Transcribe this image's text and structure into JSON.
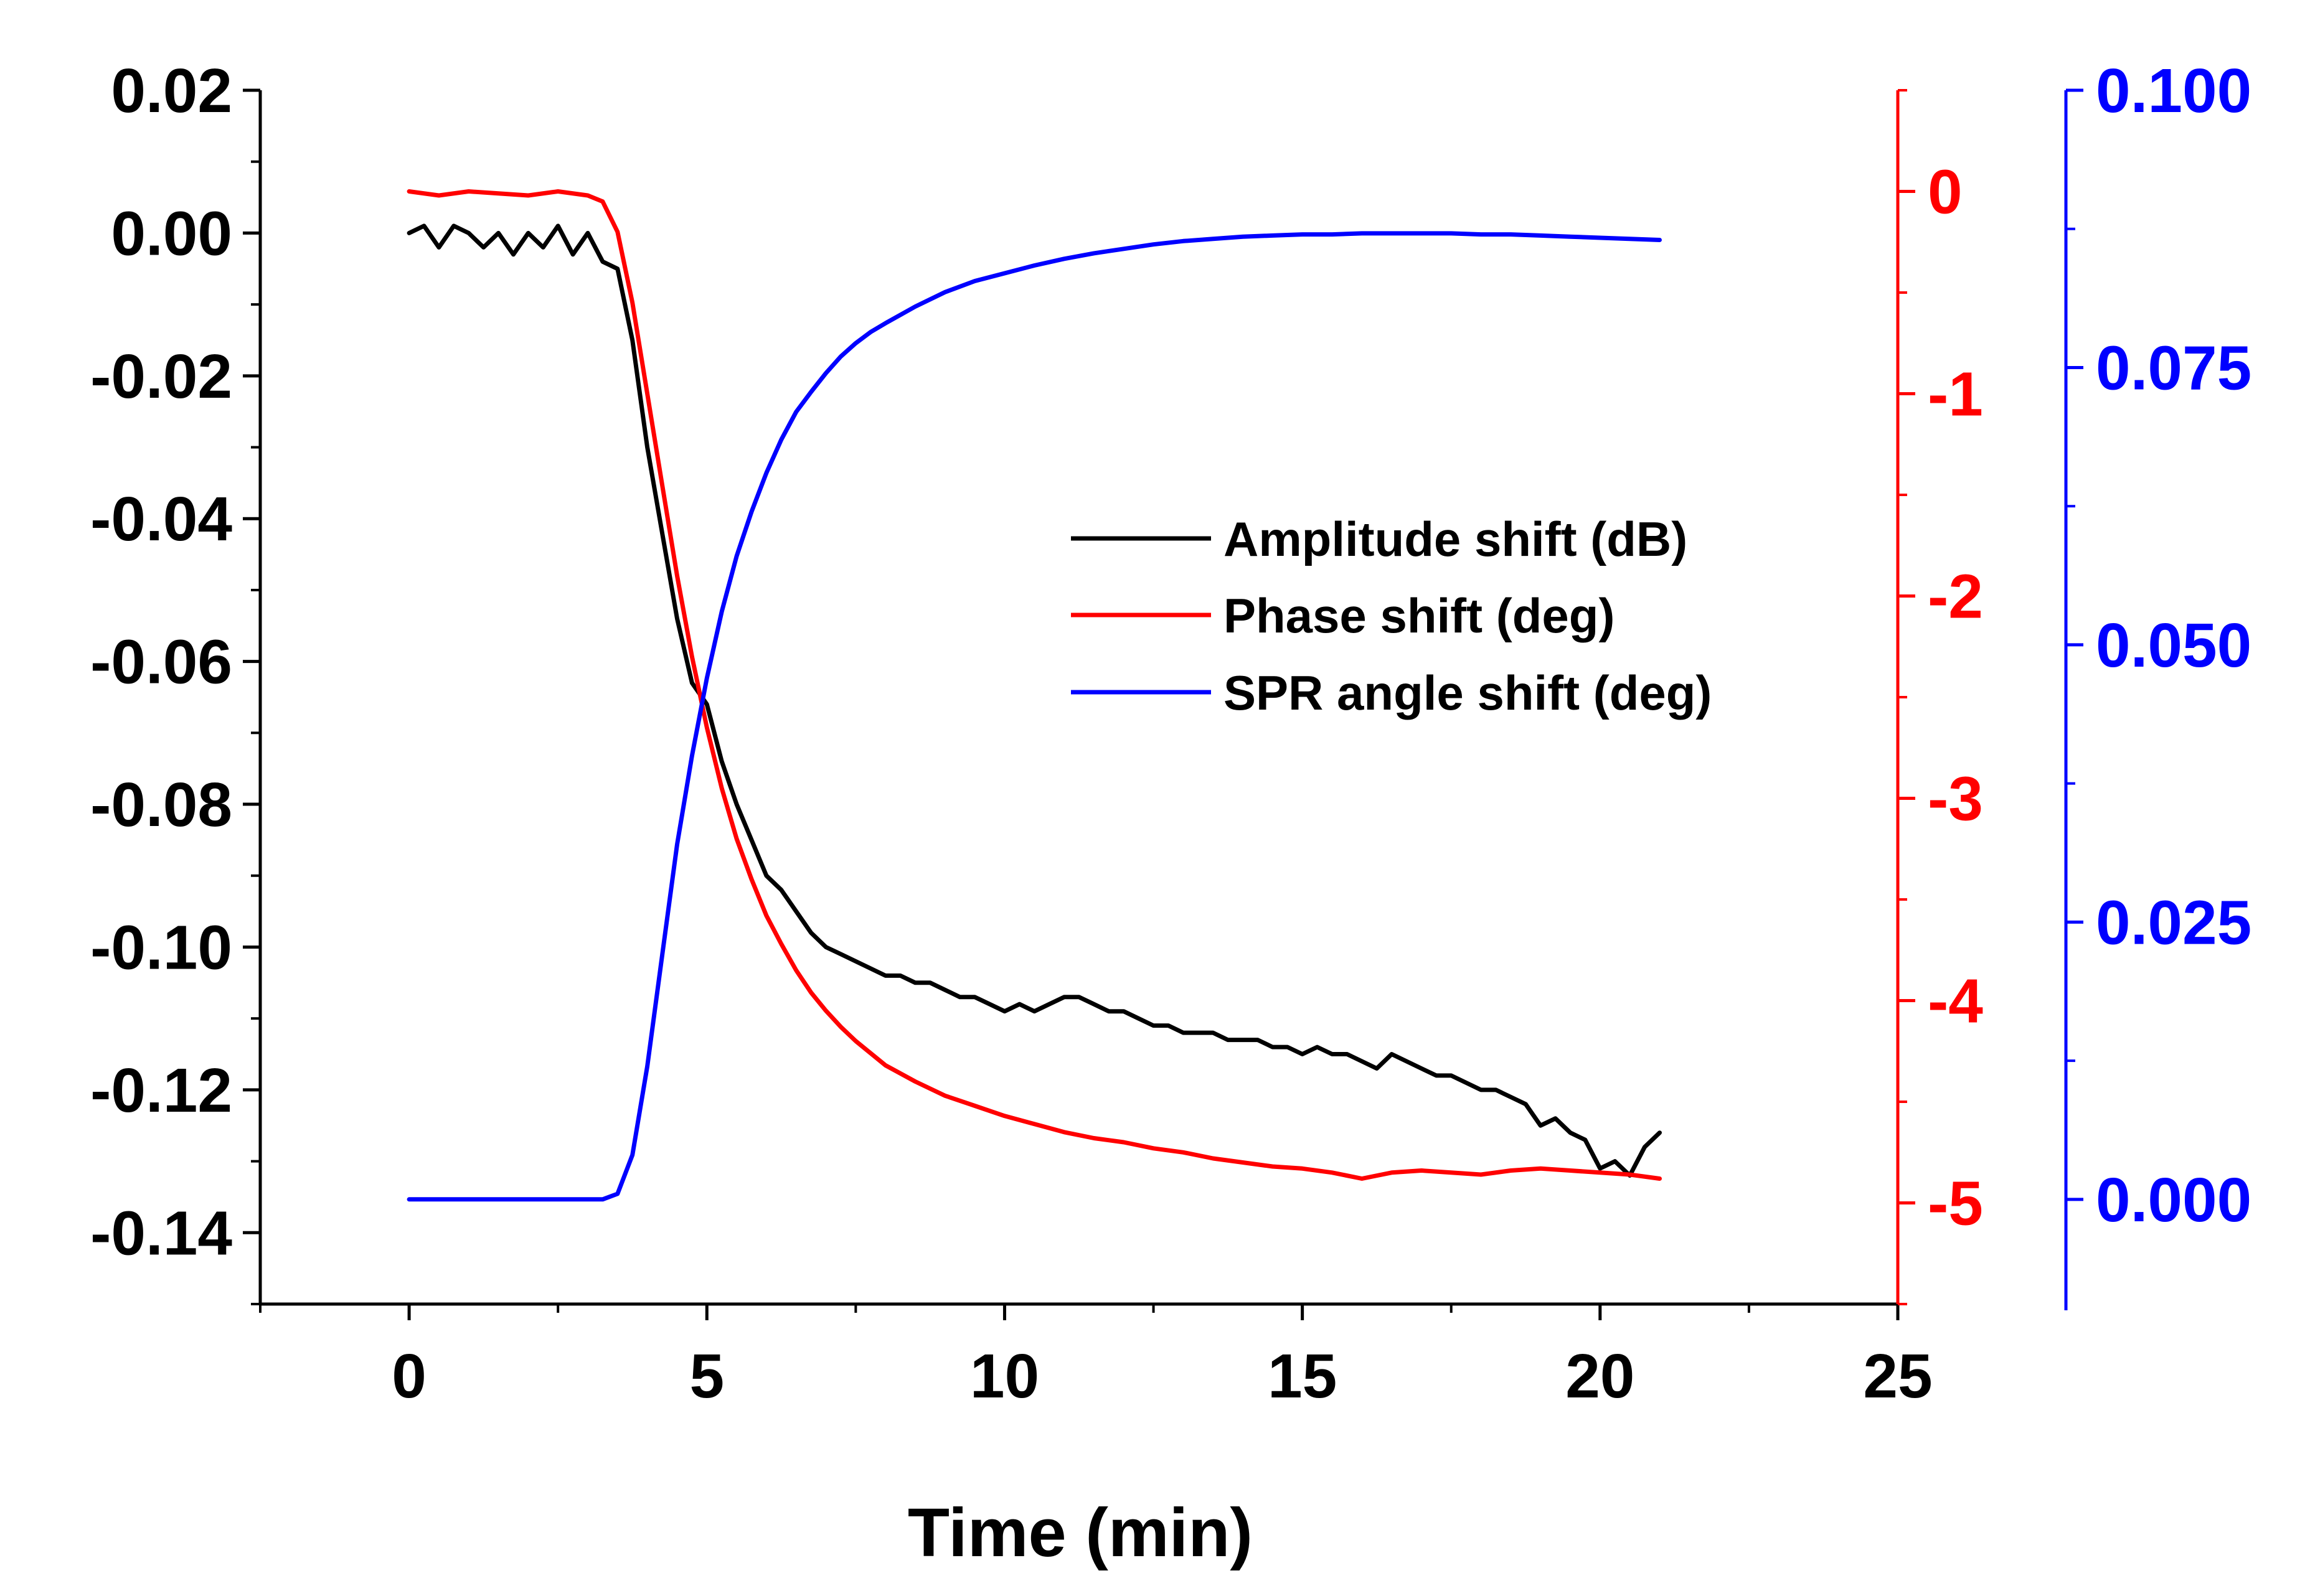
{
  "chart_data": {
    "type": "line",
    "title": "",
    "xlabel": "Time (min)",
    "xlim": [
      -2.5,
      25
    ],
    "xticks": [
      0,
      5,
      10,
      15,
      20,
      25
    ],
    "axes": {
      "left": {
        "label": "",
        "color": "#000000",
        "ylim": [
          -0.15,
          0.02
        ],
        "ticks": [
          "0.02",
          "0.00",
          "-0.02",
          "-0.04",
          "-0.06",
          "-0.08",
          "-0.10",
          "-0.12",
          "-0.14"
        ]
      },
      "right1": {
        "label": "",
        "color": "#ff0000",
        "ylim": [
          -5.5,
          0.5
        ],
        "ticks": [
          "0",
          "-1",
          "-2",
          "-3",
          "-4",
          "-5"
        ]
      },
      "right2": {
        "label": "",
        "color": "#0000ff",
        "ylim": [
          -0.01,
          0.1
        ],
        "ticks": [
          "0.100",
          "0.075",
          "0.050",
          "0.025",
          "0.000"
        ]
      }
    },
    "legend": {
      "position": "center-right",
      "entries": [
        "Amplitude shift (dB)",
        "Phase shift (deg)",
        "SPR angle shift (deg)"
      ]
    },
    "series": [
      {
        "name": "Amplitude shift (dB)",
        "axis": "left",
        "color": "#000000",
        "x": [
          0,
          0.25,
          0.5,
          0.75,
          1,
          1.25,
          1.5,
          1.75,
          2,
          2.25,
          2.5,
          2.75,
          3,
          3.25,
          3.5,
          3.75,
          4,
          4.25,
          4.5,
          4.75,
          5,
          5.25,
          5.5,
          5.75,
          6,
          6.25,
          6.5,
          6.75,
          7,
          7.25,
          7.5,
          7.75,
          8,
          8.25,
          8.5,
          8.75,
          9,
          9.25,
          9.5,
          9.75,
          10,
          10.25,
          10.5,
          10.75,
          11,
          11.25,
          11.5,
          11.75,
          12,
          12.25,
          12.5,
          12.75,
          13,
          13.25,
          13.5,
          13.75,
          14,
          14.25,
          14.5,
          14.75,
          15,
          15.25,
          15.5,
          15.75,
          16,
          16.25,
          16.5,
          16.75,
          17,
          17.25,
          17.5,
          17.75,
          18,
          18.25,
          18.5,
          18.75,
          19,
          19.25,
          19.5,
          19.75,
          20,
          20.25,
          20.5,
          20.75,
          21
        ],
        "y": [
          0.0,
          0.001,
          -0.002,
          0.001,
          0.0,
          -0.002,
          0.0,
          -0.003,
          0.0,
          -0.002,
          0.001,
          -0.003,
          0.0,
          -0.004,
          -0.005,
          -0.015,
          -0.03,
          -0.042,
          -0.054,
          -0.063,
          -0.066,
          -0.074,
          -0.08,
          -0.085,
          -0.09,
          -0.092,
          -0.095,
          -0.098,
          -0.1,
          -0.101,
          -0.102,
          -0.103,
          -0.104,
          -0.104,
          -0.105,
          -0.105,
          -0.106,
          -0.107,
          -0.107,
          -0.108,
          -0.109,
          -0.108,
          -0.109,
          -0.108,
          -0.107,
          -0.107,
          -0.108,
          -0.109,
          -0.109,
          -0.11,
          -0.111,
          -0.111,
          -0.112,
          -0.112,
          -0.112,
          -0.113,
          -0.113,
          -0.113,
          -0.114,
          -0.114,
          -0.115,
          -0.114,
          -0.115,
          -0.115,
          -0.116,
          -0.117,
          -0.115,
          -0.116,
          -0.117,
          -0.118,
          -0.118,
          -0.119,
          -0.12,
          -0.12,
          -0.121,
          -0.122,
          -0.125,
          -0.124,
          -0.126,
          -0.127,
          -0.131,
          -0.13,
          -0.132,
          -0.128,
          -0.126
        ]
      },
      {
        "name": "Phase shift (deg)",
        "axis": "right1",
        "color": "#ff0000",
        "x": [
          0,
          0.5,
          1,
          1.5,
          2,
          2.5,
          3,
          3.25,
          3.5,
          3.75,
          4,
          4.25,
          4.5,
          4.75,
          5,
          5.25,
          5.5,
          5.75,
          6,
          6.25,
          6.5,
          6.75,
          7,
          7.25,
          7.5,
          7.75,
          8,
          8.5,
          9,
          9.5,
          10,
          10.5,
          11,
          11.5,
          12,
          12.5,
          13,
          13.5,
          14,
          14.5,
          15,
          15.5,
          16,
          16.5,
          17,
          17.5,
          18,
          18.5,
          19,
          19.5,
          20,
          20.5,
          21
        ],
        "y": [
          0.0,
          -0.02,
          0.0,
          -0.01,
          -0.02,
          0.0,
          -0.02,
          -0.05,
          -0.2,
          -0.55,
          -1.0,
          -1.45,
          -1.9,
          -2.3,
          -2.65,
          -2.95,
          -3.2,
          -3.4,
          -3.58,
          -3.72,
          -3.85,
          -3.96,
          -4.05,
          -4.13,
          -4.2,
          -4.26,
          -4.32,
          -4.4,
          -4.47,
          -4.52,
          -4.57,
          -4.61,
          -4.65,
          -4.68,
          -4.7,
          -4.73,
          -4.75,
          -4.78,
          -4.8,
          -4.82,
          -4.83,
          -4.85,
          -4.88,
          -4.85,
          -4.84,
          -4.85,
          -4.86,
          -4.84,
          -4.83,
          -4.84,
          -4.85,
          -4.86,
          -4.88
        ]
      },
      {
        "name": "SPR angle shift (deg)",
        "axis": "right2",
        "color": "#0000ff",
        "x": [
          0,
          0.5,
          1,
          1.5,
          2,
          2.5,
          3,
          3.25,
          3.5,
          3.75,
          4,
          4.25,
          4.5,
          4.75,
          5,
          5.25,
          5.5,
          5.75,
          6,
          6.25,
          6.5,
          6.75,
          7,
          7.25,
          7.5,
          7.75,
          8,
          8.5,
          9,
          9.5,
          10,
          10.5,
          11,
          11.5,
          12,
          12.5,
          13,
          13.5,
          14,
          14.5,
          15,
          15.5,
          16,
          16.5,
          17,
          17.5,
          18,
          18.5,
          19,
          19.5,
          20,
          20.5,
          21
        ],
        "y": [
          0.0,
          0.0,
          0.0,
          0.0,
          0.0,
          0.0,
          0.0,
          0.0,
          0.0005,
          0.004,
          0.012,
          0.022,
          0.032,
          0.04,
          0.047,
          0.053,
          0.058,
          0.062,
          0.0655,
          0.0685,
          0.071,
          0.0728,
          0.0745,
          0.076,
          0.0772,
          0.0782,
          0.079,
          0.0805,
          0.0818,
          0.0828,
          0.0835,
          0.0842,
          0.0848,
          0.0853,
          0.0857,
          0.0861,
          0.0864,
          0.0866,
          0.0868,
          0.0869,
          0.087,
          0.087,
          0.0871,
          0.0871,
          0.0871,
          0.0871,
          0.087,
          0.087,
          0.0869,
          0.0868,
          0.0867,
          0.0866,
          0.0865
        ]
      }
    ]
  }
}
